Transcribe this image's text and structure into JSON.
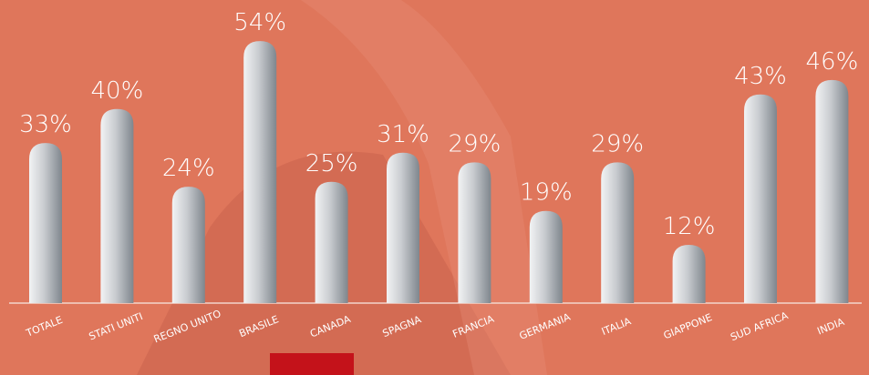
{
  "chart_data": {
    "type": "bar",
    "categories": [
      "TOTALE",
      "STATI UNITI",
      "REGNO UNITO",
      "BRASILE",
      "CANADA",
      "SPAGNA",
      "FRANCIA",
      "GERMANIA",
      "ITALIA",
      "GIAPPONE",
      "SUD AFRICA",
      "INDIA"
    ],
    "values": [
      33,
      40,
      24,
      54,
      25,
      31,
      29,
      19,
      29,
      12,
      43,
      46
    ],
    "value_labels": [
      "33%",
      "40%",
      "24%",
      "54%",
      "25%",
      "31%",
      "29%",
      "19%",
      "29%",
      "12%",
      "43%",
      "46%"
    ],
    "color": "#aeb3b8"
  }
}
